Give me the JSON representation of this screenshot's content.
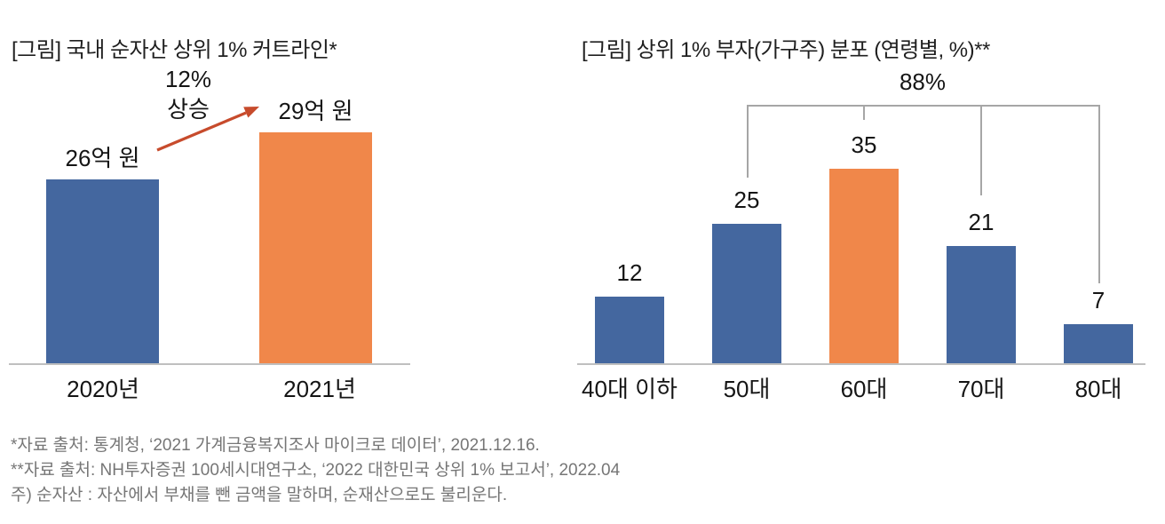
{
  "colors": {
    "bar_blue": "#44679F",
    "bar_orange": "#F0874A",
    "arrow_red": "#C74B2C",
    "axis_gray": "#BFBFBF",
    "bracket_gray": "#A6A6A6",
    "footnote_gray": "#767676",
    "text_dark": "#1F1F1F"
  },
  "chart_data": [
    {
      "type": "bar",
      "title": "[그림] 국내 순자산 상위 1% 커트라인*",
      "categories": [
        "2020년",
        "2021년"
      ],
      "values": [
        26,
        29
      ],
      "value_unit_labels": [
        "26억 원",
        "29억 원"
      ],
      "unit": "억 원",
      "bar_colors": [
        "bar_blue",
        "bar_orange"
      ],
      "annotation": {
        "line1": "12%",
        "line2": "상승"
      },
      "grid": false,
      "legend": false,
      "value_labels_shown": true
    },
    {
      "type": "bar",
      "title": "[그림] 상위 1% 부자(가구주) 분포 (연령별, %)**",
      "categories": [
        "40대 이하",
        "50대",
        "60대",
        "70대",
        "80대"
      ],
      "values": [
        12,
        25,
        35,
        21,
        7
      ],
      "bar_colors": [
        "bar_blue",
        "bar_blue",
        "bar_orange",
        "bar_blue",
        "bar_blue"
      ],
      "bracket": {
        "label": "88%",
        "spans": [
          "50대",
          "60대",
          "70대",
          "80대"
        ]
      },
      "grid": false,
      "legend": false,
      "value_labels_shown": true
    }
  ],
  "footnotes": [
    "*자료 출처: 통계청, ‘2021 가계금융복지조사 마이크로 데이터’, 2021.12.16.",
    "**자료 출처: NH투자증권 100세시대연구소, ‘2022 대한민국 상위 1% 보고서’, 2022.04",
    "주) 순자산 : 자산에서 부채를 뺀 금액을 말하며, 순재산으로도 불리운다."
  ]
}
